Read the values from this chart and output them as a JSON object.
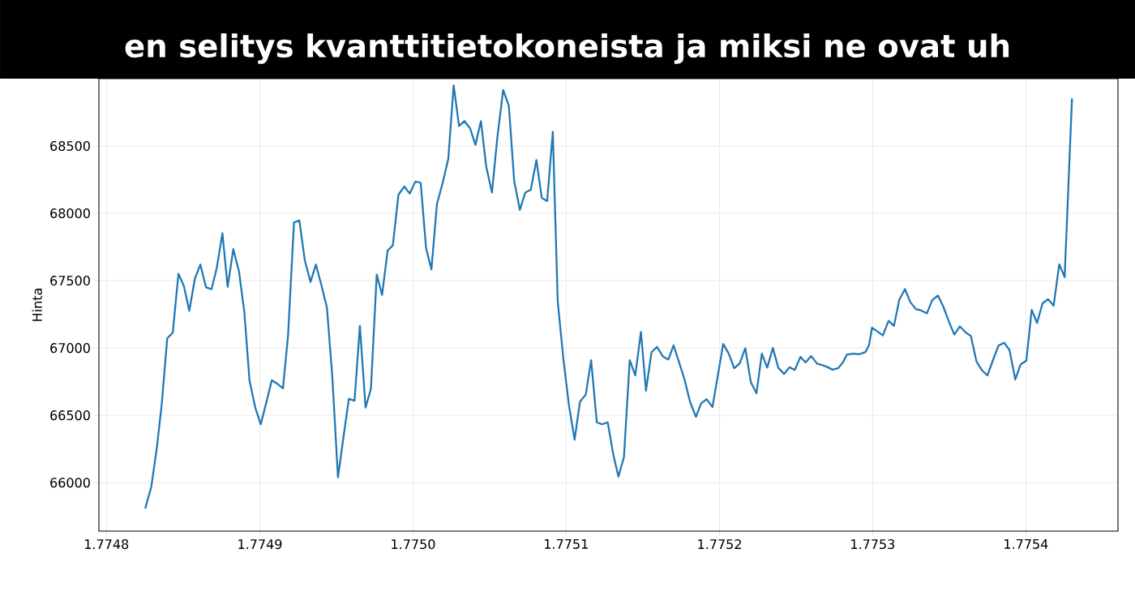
{
  "chart_data": {
    "type": "line",
    "title": "en selitys kvanttitietokoneista ja miksi ne ovat uh",
    "ylabel": "Hinta",
    "x": [
      1.7748253,
      1.7748292,
      1.7748329,
      1.7748361,
      1.7748397,
      1.7748433,
      1.7748469,
      1.7748505,
      1.7748541,
      1.7748577,
      1.7748613,
      1.7748649,
      1.7748686,
      1.774872,
      1.7748756,
      1.7748792,
      1.7748828,
      1.7748864,
      1.77489,
      1.7748934,
      1.7748971,
      1.7749007,
      1.7749043,
      1.7749079,
      1.7749115,
      1.7749151,
      1.7749185,
      1.7749223,
      1.7749259,
      1.7749295,
      1.7749331,
      1.7749367,
      1.7749403,
      1.7749439,
      1.7749474,
      1.774951,
      1.7749546,
      1.7749582,
      1.7749618,
      1.7749654,
      1.774969,
      1.7749726,
      1.7749764,
      1.7749799,
      1.7749835,
      1.7749869,
      1.7749905,
      1.7749943,
      1.7749979,
      1.7750015,
      1.7750051,
      1.7750085,
      1.7750121,
      1.7750157,
      1.7750194,
      1.775023,
      1.7750266,
      1.77503,
      1.7750336,
      1.7750372,
      1.7750408,
      1.7750444,
      1.7750479,
      1.7750515,
      1.7750551,
      1.7750589,
      1.7750625,
      1.7750661,
      1.7750697,
      1.7750733,
      1.7750769,
      1.7750805,
      1.7750841,
      1.7750876,
      1.7750912,
      1.7750944,
      1.7750982,
      1.7751018,
      1.7751054,
      1.775109,
      1.7751128,
      1.7751163,
      1.7751199,
      1.7751235,
      1.7751271,
      1.7751307,
      1.7751341,
      1.7751377,
      1.7751415,
      1.7751451,
      1.7751487,
      1.7751522,
      1.7751557,
      1.7751593,
      1.7751631,
      1.7751667,
      1.7751702,
      1.7751737,
      1.7751772,
      1.7751808,
      1.7751847,
      1.7751882,
      1.7751917,
      1.7751954,
      1.7751989,
      1.7752025,
      1.7752062,
      1.7752097,
      1.7752132,
      1.7752168,
      1.7752205,
      1.7752242,
      1.7752277,
      1.7752312,
      1.7752348,
      1.7752383,
      1.7752422,
      1.7752457,
      1.7752492,
      1.7752528,
      1.7752562,
      1.7752598,
      1.7752636,
      1.7752672,
      1.7752707,
      1.7752739,
      1.7752774,
      1.7752806,
      1.7752831,
      1.7752873,
      1.7752915,
      1.7752954,
      1.7752977,
      1.7752995,
      1.7753067,
      1.7753103,
      1.7753138,
      1.7753174,
      1.775321,
      1.7753246,
      1.7753282,
      1.7753318,
      1.7753354,
      1.7753389,
      1.7753425,
      1.7753461,
      1.7753497,
      1.7753533,
      1.7753569,
      1.7753605,
      1.7753641,
      1.7753677,
      1.7753713,
      1.7753749,
      1.7753785,
      1.7753821,
      1.7753857,
      1.7753892,
      1.775393,
      1.7753966,
      1.7754002,
      1.7754038,
      1.7754073,
      1.7754109,
      1.7754145,
      1.7754181,
      1.7754217,
      1.7754253,
      1.7754301
    ],
    "values": [
      65808,
      65970,
      66260,
      66583,
      67072,
      67114,
      67551,
      67461,
      67276,
      67514,
      67620,
      67450,
      67437,
      67594,
      67852,
      67454,
      67734,
      67569,
      67267,
      66755,
      66555,
      66433,
      66598,
      66760,
      66734,
      66701,
      67089,
      67932,
      67947,
      67648,
      67491,
      67620,
      67461,
      67299,
      66787,
      66039,
      66331,
      66622,
      66609,
      67164,
      66557,
      66697,
      67545,
      67394,
      67723,
      67762,
      68139,
      68199,
      68147,
      68236,
      68226,
      67740,
      67584,
      68070,
      68225,
      68405,
      68950,
      68648,
      68685,
      68631,
      68508,
      68685,
      68343,
      68154,
      68563,
      68917,
      68799,
      68240,
      68025,
      68154,
      68175,
      68395,
      68115,
      68091,
      68605,
      67347,
      66906,
      66577,
      66319,
      66600,
      66654,
      66910,
      66448,
      66433,
      66448,
      66207,
      66045,
      66189,
      66910,
      66797,
      67119,
      66683,
      66968,
      67008,
      66938,
      66914,
      67020,
      66893,
      66769,
      66602,
      66488,
      66589,
      66619,
      66562,
      66797,
      67030,
      66958,
      66849,
      66884,
      66998,
      66747,
      66663,
      66958,
      66854,
      67000,
      66854,
      66807,
      66857,
      66837,
      66934,
      66893,
      66940,
      66884,
      66873,
      66857,
      66839,
      66849,
      66893,
      66950,
      66958,
      66954,
      66970,
      67024,
      67151,
      67093,
      67202,
      67164,
      67358,
      67437,
      67340,
      67289,
      67278,
      67257,
      67355,
      67390,
      67308,
      67196,
      67099,
      67160,
      67117,
      67089,
      66899,
      66835,
      66796,
      66912,
      67017,
      67039,
      66986,
      66766,
      66878,
      66906,
      67283,
      67186,
      67332,
      67362,
      67314,
      67622,
      67525,
      68853
    ],
    "color": "#1f77b4",
    "xlim": [
      1.774795,
      1.77546
    ],
    "ylim": [
      65640,
      69000
    ],
    "xticks": [
      1.7748,
      1.7749,
      {
        "value": 1.775,
        "label": "1.7750"
      },
      1.7751,
      1.7752,
      1.7753,
      1.7754
    ],
    "yticks": [
      66000,
      66500,
      67000,
      67500,
      68000,
      68500
    ],
    "grid": true
  }
}
